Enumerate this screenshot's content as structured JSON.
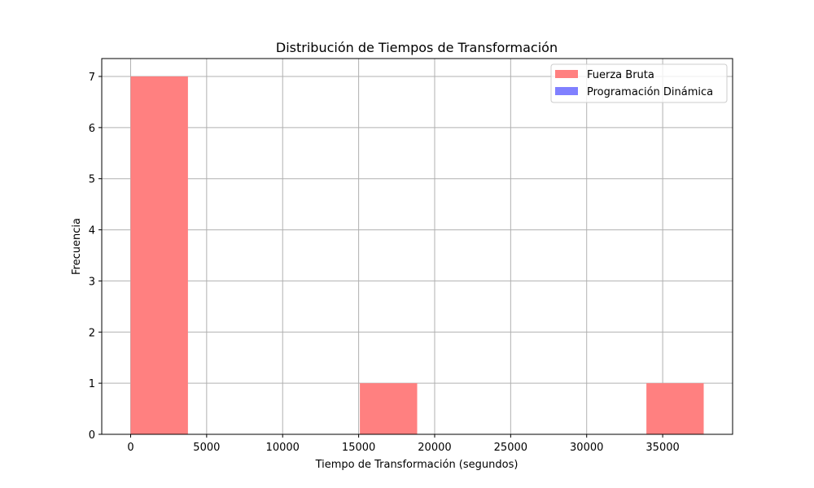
{
  "chart_data": {
    "type": "bar",
    "title": "Distribución de Tiempos de Transformación",
    "xlabel": "Tiempo de Transformación (segundos)",
    "ylabel": "Frecuencia",
    "xlim": [
      -1900,
      39600
    ],
    "ylim": [
      0,
      7.35
    ],
    "xticks": [
      0,
      5000,
      10000,
      15000,
      20000,
      25000,
      30000,
      35000
    ],
    "yticks": [
      0,
      1,
      2,
      3,
      4,
      5,
      6,
      7
    ],
    "grid": true,
    "legend_position": "top-right",
    "series": [
      {
        "name": "Fuerza Bruta",
        "color": "#ff8080",
        "bins": [
          {
            "x0": 0,
            "x1": 3770,
            "count": 7
          },
          {
            "x0": 15080,
            "x1": 18850,
            "count": 1
          },
          {
            "x0": 33930,
            "x1": 37700,
            "count": 1
          }
        ]
      },
      {
        "name": "Programación Dinámica",
        "color": "#8080ff",
        "bins": []
      }
    ]
  }
}
